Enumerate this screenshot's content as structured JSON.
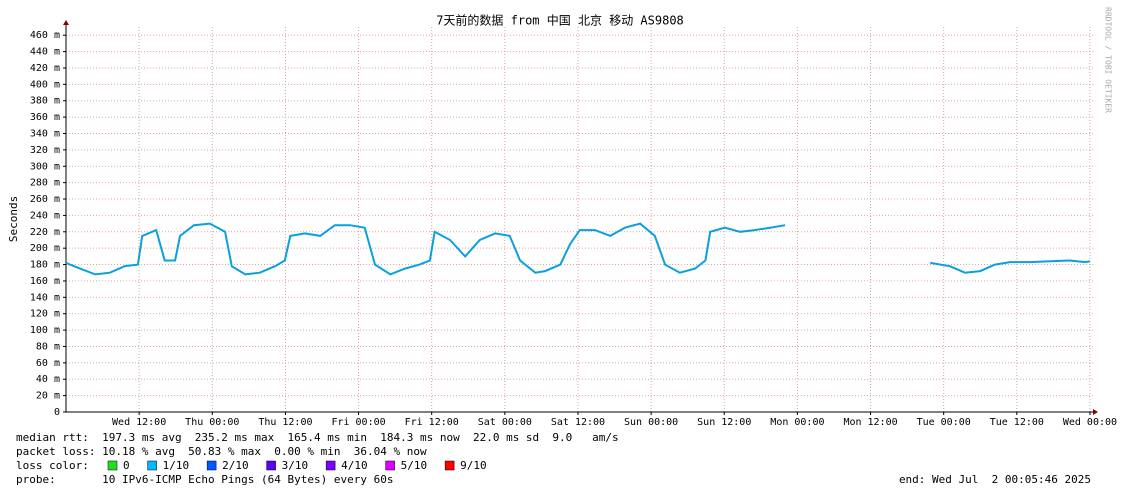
{
  "chart_data": {
    "type": "line",
    "title": "7天前的数据 from 中国 北京 移动 AS9808",
    "y_label": "Seconds",
    "watermark": "RRDTOOL / TOBI OETIKER",
    "xlim": [
      0,
      168.5
    ],
    "ylim": [
      0,
      470
    ],
    "xticks": [
      {
        "value": 12,
        "label": "Wed 12:00"
      },
      {
        "value": 24,
        "label": "Thu 00:00"
      },
      {
        "value": 36,
        "label": "Thu 12:00"
      },
      {
        "value": 48,
        "label": "Fri 00:00"
      },
      {
        "value": 60,
        "label": "Fri 12:00"
      },
      {
        "value": 72,
        "label": "Sat 00:00"
      },
      {
        "value": 84,
        "label": "Sat 12:00"
      },
      {
        "value": 96,
        "label": "Sun 00:00"
      },
      {
        "value": 108,
        "label": "Sun 12:00"
      },
      {
        "value": 120,
        "label": "Mon 00:00"
      },
      {
        "value": 132,
        "label": "Mon 12:00"
      },
      {
        "value": 144,
        "label": "Tue 00:00"
      },
      {
        "value": 156,
        "label": "Tue 12:00"
      },
      {
        "value": 168,
        "label": "Wed 00:00"
      }
    ],
    "yticks": [
      0,
      {
        "value": 20,
        "label": "20 m"
      },
      {
        "value": 40,
        "label": "40 m"
      },
      {
        "value": 60,
        "label": "60 m"
      },
      {
        "value": 80,
        "label": "80 m"
      },
      {
        "value": 100,
        "label": "100 m"
      },
      {
        "value": 120,
        "label": "120 m"
      },
      {
        "value": 140,
        "label": "140 m"
      },
      {
        "value": 160,
        "label": "160 m"
      },
      {
        "value": 180,
        "label": "180 m"
      },
      {
        "value": 200,
        "label": "200 m"
      },
      {
        "value": 220,
        "label": "220 m"
      },
      {
        "value": 240,
        "label": "240 m"
      },
      {
        "value": 260,
        "label": "260 m"
      },
      {
        "value": 280,
        "label": "280 m"
      },
      {
        "value": 300,
        "label": "300 m"
      },
      {
        "value": 320,
        "label": "320 m"
      },
      {
        "value": 340,
        "label": "340 m"
      },
      {
        "value": 360,
        "label": "360 m"
      },
      {
        "value": 380,
        "label": "380 m"
      },
      {
        "value": 400,
        "label": "400 m"
      },
      {
        "value": 420,
        "label": "420 m"
      },
      {
        "value": 440,
        "label": "440 m"
      },
      {
        "value": 460,
        "label": "460 m"
      }
    ],
    "grid": true,
    "series": [
      {
        "name": "median rtt",
        "color": "#0aa0e0",
        "x": [
          0,
          2.3,
          4.8,
          7.2,
          9.6,
          11.8,
          12.5,
          14.8,
          16.2,
          17.9,
          18.7,
          21,
          23.6,
          26.1,
          27.2,
          29.4,
          31.8,
          34.3,
          35.9,
          36.8,
          39.2,
          41.7,
          44.1,
          46.6,
          49,
          50.7,
          53.2,
          55.6,
          58,
          59.7,
          60.5,
          63,
          65.5,
          67.9,
          70.4,
          72.8,
          74.5,
          77,
          78.6,
          81.1,
          82.7,
          84.3,
          86.8,
          89.3,
          91.7,
          94.2,
          96.6,
          98.3,
          100.7,
          103.2,
          104.9,
          105.7,
          108.1,
          110.6,
          113,
          115.5,
          118,
          130,
          141.8,
          145,
          147.5,
          150,
          152.4,
          154.9,
          158.2,
          161.5,
          164.7,
          167.2,
          168
        ],
        "values": [
          182,
          175,
          168,
          170,
          178,
          180,
          215,
          222,
          185,
          185,
          215,
          228,
          230,
          220,
          178,
          168,
          170,
          178,
          185,
          215,
          218,
          215,
          228,
          228,
          225,
          180,
          168,
          175,
          180,
          185,
          220,
          210,
          190,
          210,
          218,
          215,
          185,
          170,
          172,
          180,
          205,
          222,
          222,
          215,
          225,
          230,
          215,
          180,
          170,
          175,
          185,
          220,
          225,
          220,
          222,
          225,
          228,
          null,
          182,
          178,
          170,
          172,
          180,
          183,
          183,
          184,
          185,
          183,
          184
        ]
      }
    ],
    "stats": [
      "median rtt:  197.3 ms avg  235.2 ms max  165.4 ms min  184.3 ms now  22.0 ms sd  9.0   am/s",
      "packet loss: 10.18 % avg  50.83 % max  0.00 % min  36.04 % now"
    ],
    "loss_label": "loss color:",
    "loss_colors": [
      {
        "name": "0",
        "color": "#22dd22"
      },
      {
        "name": "1/10",
        "color": "#00b8ff"
      },
      {
        "name": "2/10",
        "color": "#0059ff"
      },
      {
        "name": "3/10",
        "color": "#5e00ff"
      },
      {
        "name": "4/10",
        "color": "#7e00ff"
      },
      {
        "name": "5/10",
        "color": "#dd00ff"
      },
      {
        "name": "9/10",
        "color": "#ff0000"
      }
    ],
    "probe": "probe:       10 IPv6-ICMP Echo Pings (64 Bytes) every 60s",
    "end": "end: Wed Jul  2 00:05:46 2025"
  }
}
